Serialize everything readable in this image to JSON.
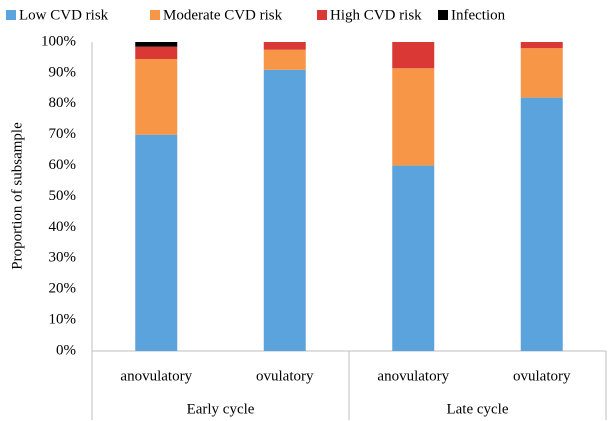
{
  "chart_data": {
    "type": "stacked-bar",
    "y_label": "Proportion of subsample",
    "categories": [
      "anovulatory",
      "ovulatory",
      "anovulatory",
      "ovulatory"
    ],
    "groups": [
      "Early cycle",
      "Late cycle"
    ],
    "series": [
      {
        "name": "Low CVD risk",
        "color": "#5ba3dc",
        "values": [
          70,
          91,
          60,
          82
        ]
      },
      {
        "name": "Moderate CVD risk",
        "color": "#f79646",
        "values": [
          24.5,
          6.5,
          31.5,
          16
        ]
      },
      {
        "name": "High CVD risk",
        "color": "#d93834",
        "values": [
          4,
          2.5,
          8.5,
          2
        ]
      },
      {
        "name": "Infection",
        "color": "#000000",
        "values": [
          1.5,
          0,
          0,
          0
        ]
      }
    ],
    "ylim": [
      0,
      100
    ],
    "yticks": [
      {
        "value": 0,
        "label": "0%"
      },
      {
        "value": 10,
        "label": "10%"
      },
      {
        "value": 20,
        "label": "20%"
      },
      {
        "value": 30,
        "label": "30%"
      },
      {
        "value": 40,
        "label": "40%"
      },
      {
        "value": 50,
        "label": "50%"
      },
      {
        "value": 60,
        "label": "60%"
      },
      {
        "value": 70,
        "label": "70%"
      },
      {
        "value": 80,
        "label": "80%"
      },
      {
        "value": 90,
        "label": "90%"
      },
      {
        "value": 100,
        "label": "100%"
      }
    ],
    "legend": "top"
  }
}
